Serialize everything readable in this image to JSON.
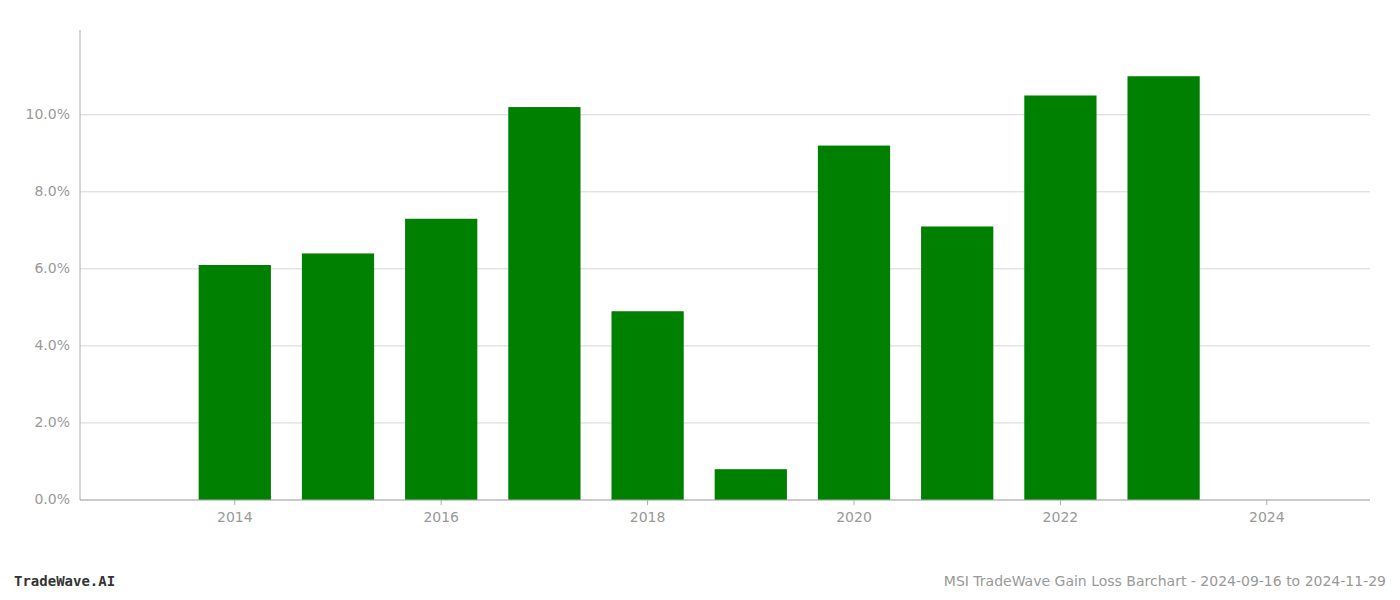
{
  "chart_data": {
    "type": "bar",
    "title": "MSI TradeWave Gain Loss Barchart - 2024-09-16 to 2024-11-29",
    "annotations": [
      "TradeWave.AI"
    ],
    "x": [
      2014,
      2015,
      2016,
      2017,
      2018,
      2019,
      2020,
      2021,
      2022,
      2023
    ],
    "values": [
      0.061,
      0.064,
      0.073,
      0.102,
      0.049,
      0.008,
      0.092,
      0.071,
      0.105,
      0.11
    ],
    "color": "#008000",
    "xlim": [
      2012.5,
      2025.0
    ],
    "ylim": [
      0,
      0.122
    ],
    "xticks": [
      2014,
      2016,
      2018,
      2020,
      2022,
      2024
    ],
    "yticks": [
      {
        "value": 0.0,
        "label": "0.0%"
      },
      {
        "value": 0.02,
        "label": "2.0%"
      },
      {
        "value": 0.04,
        "label": "4.0%"
      },
      {
        "value": 0.06,
        "label": "6.0%"
      },
      {
        "value": 0.08,
        "label": "8.0%"
      },
      {
        "value": 0.1,
        "label": "10.0%"
      }
    ],
    "grid": true
  }
}
